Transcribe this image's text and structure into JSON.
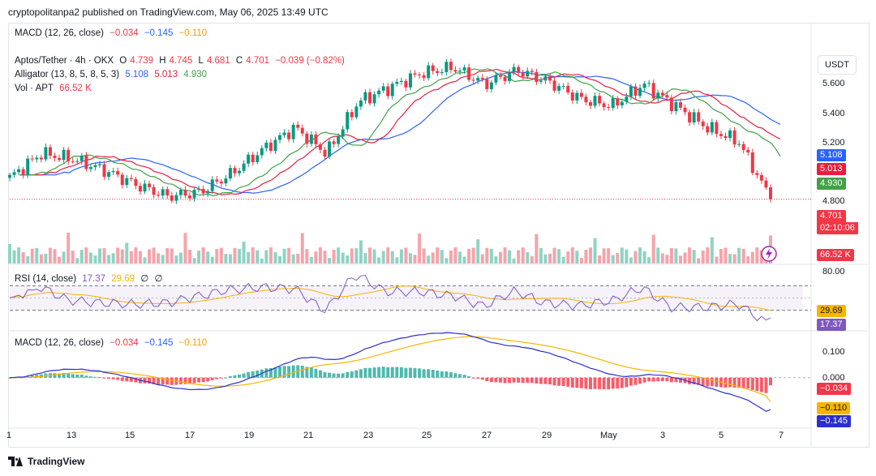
{
  "header": {
    "published": "cryptopolitanpa2 published on TradingView.com, May 06, 2025 13:49 UTC"
  },
  "top_legend": {
    "name": "MACD (12, 26, close)",
    "v1": "−0.034",
    "v2": "−0.145",
    "v3": "−0.110"
  },
  "main_legend": {
    "symbol": "Aptos/Tether · 4h · OKX",
    "o_label": "O",
    "o": "4.739",
    "h_label": "H",
    "h": "4.745",
    "l_label": "L",
    "l": "4.681",
    "c_label": "C",
    "c": "4.701",
    "change": "−0.039 (−0.82%)",
    "alligator": "Alligator (13, 8, 5, 8, 5, 3)",
    "a1": "5.108",
    "a2": "5.013",
    "a3": "4.930",
    "vol": "Vol · APT",
    "vol_value": "66.52 K"
  },
  "currency": "USDT",
  "price_axis": [
    "5.600",
    "5.400",
    "5.200",
    "4.800"
  ],
  "price_labels": {
    "jaw": "5.108",
    "teeth": "5.013",
    "lips": "4.930",
    "last": "4.701",
    "countdown": "02:10:06",
    "vol": "66.52 K"
  },
  "rsi": {
    "name": "RSI (14, close)",
    "v1": "17.37",
    "v2": "29.69",
    "v3": "∅",
    "v4": "∅",
    "axis_top": "80.00",
    "label_ma": "29.69",
    "label_rsi": "17.37"
  },
  "macd": {
    "name": "MACD (12, 26, close)",
    "v1": "−0.034",
    "v2": "−0.145",
    "v3": "−0.110",
    "axis": [
      "0.100",
      "0.000"
    ],
    "label_hist": "−0.034",
    "label_signal": "−0.110",
    "label_macd": "−0.145"
  },
  "time_axis": [
    "1",
    "13",
    "15",
    "17",
    "19",
    "21",
    "23",
    "25",
    "27",
    "29",
    "May",
    "3",
    "5",
    "7"
  ],
  "footer": {
    "brand": "TradingView"
  },
  "colors": {
    "up": "#089981",
    "down": "#f23645",
    "jaw": "#2962ff",
    "teeth": "#e91e3f",
    "lips": "#43a047",
    "rsi": "#7e57c2",
    "rsi_ma": "#f7b500",
    "macd": "#2a2ed0",
    "signal": "#f7b500"
  },
  "chart_data": {
    "type": "candlestick",
    "title": "Aptos/Tether · 4h · OKX",
    "x_ticks": [
      "1",
      "13",
      "15",
      "17",
      "19",
      "21",
      "23",
      "25",
      "27",
      "29",
      "May",
      "3",
      "5",
      "7"
    ],
    "ylim": [
      4.45,
      5.75
    ],
    "close_anchors": [
      {
        "x": "11",
        "close": 4.85
      },
      {
        "x": "13",
        "close": 5.02
      },
      {
        "x": "14",
        "close": 4.98
      },
      {
        "x": "15",
        "close": 4.9
      },
      {
        "x": "16",
        "close": 4.8
      },
      {
        "x": "17",
        "close": 4.72
      },
      {
        "x": "18",
        "close": 4.75
      },
      {
        "x": "19",
        "close": 4.88
      },
      {
        "x": "20",
        "close": 5.05
      },
      {
        "x": "21",
        "close": 5.2
      },
      {
        "x": "22",
        "close": 5.02
      },
      {
        "x": "23",
        "close": 5.38
      },
      {
        "x": "24",
        "close": 5.48
      },
      {
        "x": "25",
        "close": 5.58
      },
      {
        "x": "26",
        "close": 5.62
      },
      {
        "x": "27",
        "close": 5.5
      },
      {
        "x": "28",
        "close": 5.6
      },
      {
        "x": "29",
        "close": 5.52
      },
      {
        "x": "30",
        "close": 5.4
      },
      {
        "x": "May",
        "close": 5.35
      },
      {
        "x": "2",
        "close": 5.5
      },
      {
        "x": "3",
        "close": 5.35
      },
      {
        "x": "4",
        "close": 5.2
      },
      {
        "x": "5",
        "close": 5.1
      },
      {
        "x": "6",
        "close": 4.701
      }
    ],
    "last": {
      "open": 4.739,
      "high": 4.745,
      "low": 4.681,
      "close": 4.701
    },
    "alligator": {
      "jaw": 5.108,
      "teeth": 5.013,
      "lips": 4.93
    },
    "volume_last": "66.52 K",
    "rsi": {
      "value": 17.37,
      "ma": 29.69,
      "ylim": [
        0,
        100
      ],
      "bands": [
        30,
        70
      ]
    },
    "macd": {
      "macd": -0.145,
      "signal": -0.11,
      "hist": -0.034,
      "ylim": [
        -0.2,
        0.15
      ]
    }
  }
}
